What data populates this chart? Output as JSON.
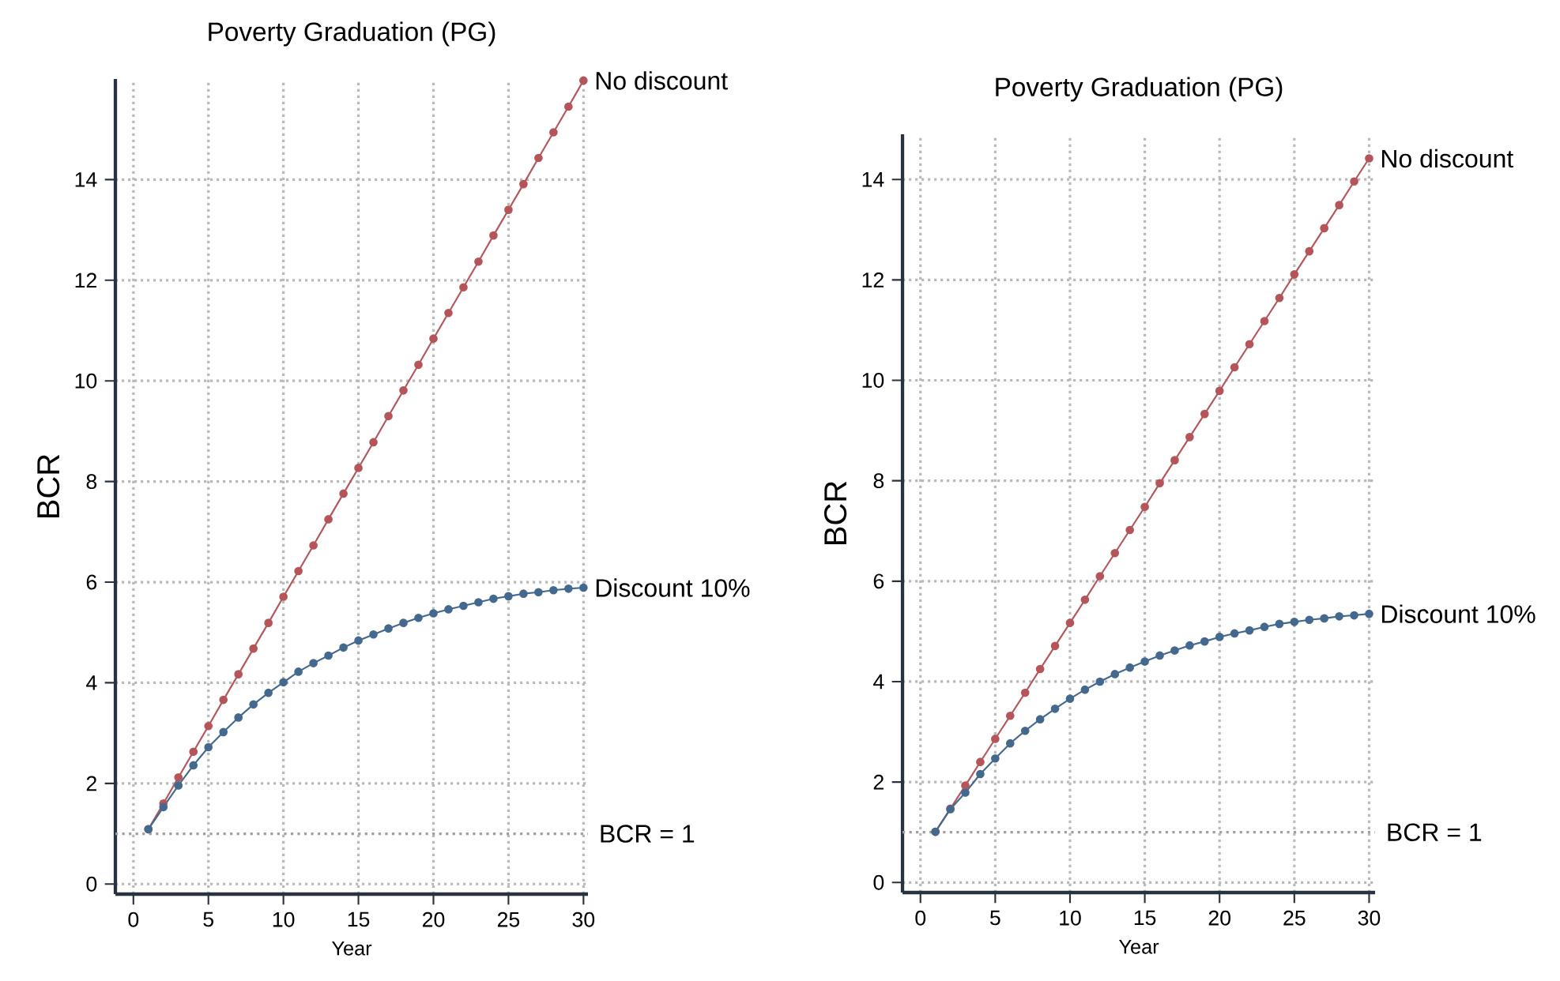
{
  "chart_data": [
    {
      "type": "line",
      "title": "Poverty Graduation (PG)",
      "xlabel": "Year",
      "ylabel": "BCR",
      "x": [
        1,
        2,
        3,
        4,
        5,
        6,
        7,
        8,
        9,
        10,
        11,
        12,
        13,
        14,
        15,
        16,
        17,
        18,
        19,
        20,
        21,
        22,
        23,
        24,
        25,
        26,
        27,
        28,
        29,
        30
      ],
      "series": [
        {
          "name": "No discount",
          "color": "#b5555a",
          "values": [
            1.09,
            1.6,
            2.12,
            2.63,
            3.14,
            3.66,
            4.17,
            4.68,
            5.19,
            5.71,
            6.22,
            6.73,
            7.25,
            7.76,
            8.27,
            8.78,
            9.3,
            9.81,
            10.32,
            10.84,
            11.35,
            11.86,
            12.37,
            12.89,
            13.4,
            13.91,
            14.43,
            14.94,
            15.45,
            15.97
          ]
        },
        {
          "name": "Discount 10%",
          "color": "#44698f",
          "values": [
            1.09,
            1.53,
            1.96,
            2.36,
            2.72,
            3.02,
            3.31,
            3.57,
            3.8,
            4.01,
            4.22,
            4.39,
            4.54,
            4.7,
            4.84,
            4.96,
            5.08,
            5.19,
            5.29,
            5.38,
            5.46,
            5.53,
            5.6,
            5.67,
            5.72,
            5.77,
            5.8,
            5.84,
            5.87,
            5.89
          ]
        }
      ],
      "xlim": [
        -1.2,
        30.3
      ],
      "ylim": [
        -0.2,
        16
      ],
      "xticks": [
        0,
        5,
        10,
        15,
        20,
        25,
        30
      ],
      "yticks": [
        0,
        2,
        4,
        6,
        8,
        10,
        12,
        14
      ],
      "grid": true,
      "marker": "circle",
      "line_style": "solid",
      "ref_lines": [
        {
          "axis": "y",
          "value": 1,
          "label": "BCR = 1",
          "color": "#a0a0a0",
          "line_style": "dotted"
        }
      ]
    },
    {
      "type": "line",
      "title": "Poverty Graduation (PG)",
      "xlabel": "Year",
      "ylabel": "BCR",
      "x": [
        1,
        2,
        3,
        4,
        5,
        6,
        7,
        8,
        9,
        10,
        11,
        12,
        13,
        14,
        15,
        16,
        17,
        18,
        19,
        20,
        21,
        22,
        23,
        24,
        25,
        26,
        27,
        28,
        29,
        30
      ],
      "series": [
        {
          "name": "No discount",
          "color": "#b5555a",
          "values": [
            1.01,
            1.47,
            1.93,
            2.4,
            2.86,
            3.32,
            3.78,
            4.25,
            4.71,
            5.17,
            5.63,
            6.1,
            6.56,
            7.02,
            7.48,
            7.95,
            8.41,
            8.87,
            9.33,
            9.79,
            10.26,
            10.72,
            11.18,
            11.64,
            12.11,
            12.57,
            13.03,
            13.49,
            13.96,
            14.42
          ]
        },
        {
          "name": "Discount 10%",
          "color": "#44698f",
          "values": [
            1.01,
            1.46,
            1.79,
            2.16,
            2.47,
            2.77,
            3.02,
            3.25,
            3.46,
            3.66,
            3.84,
            4.0,
            4.15,
            4.28,
            4.4,
            4.52,
            4.62,
            4.72,
            4.8,
            4.89,
            4.96,
            5.02,
            5.09,
            5.15,
            5.19,
            5.23,
            5.26,
            5.3,
            5.32,
            5.35
          ]
        }
      ],
      "xlim": [
        -1.2,
        30.4
      ],
      "ylim": [
        -0.2,
        14.9
      ],
      "xticks": [
        0,
        5,
        10,
        15,
        20,
        25,
        30
      ],
      "yticks": [
        0,
        2,
        4,
        6,
        8,
        10,
        12,
        14
      ],
      "grid": true,
      "marker": "circle",
      "line_style": "solid",
      "ref_lines": [
        {
          "axis": "y",
          "value": 1,
          "label": "BCR = 1",
          "color": "#a0a0a0",
          "line_style": "dotted"
        }
      ]
    }
  ]
}
